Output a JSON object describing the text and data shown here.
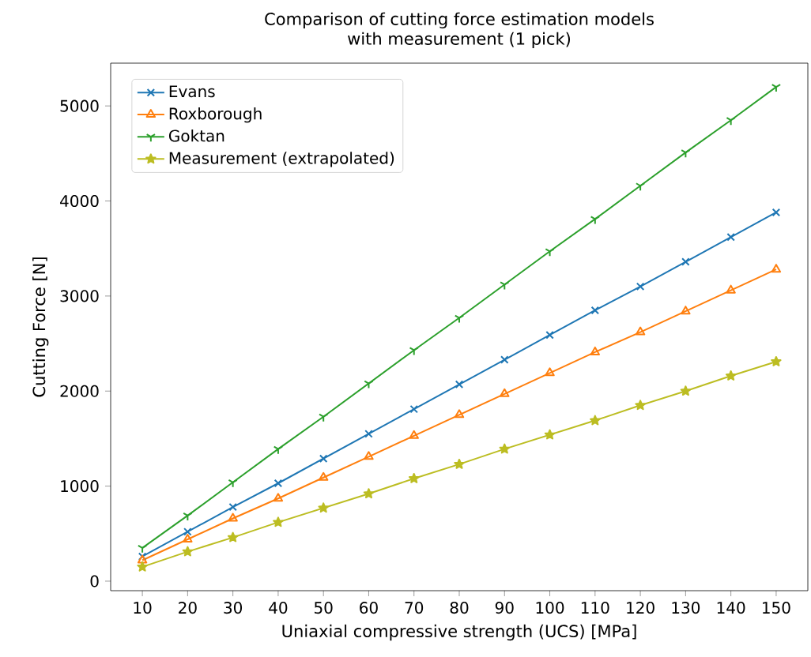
{
  "chart_data": {
    "type": "line",
    "title": "Comparison of cutting force estimation models\nwith measurement (1 pick)",
    "xlabel": "Uniaxial compressive strength (UCS) [MPa]",
    "ylabel": "Cutting Force [N]",
    "x": [
      10,
      20,
      30,
      40,
      50,
      60,
      70,
      80,
      90,
      100,
      110,
      120,
      130,
      140,
      150
    ],
    "series": [
      {
        "name": "Evans",
        "color": "#1f77b4",
        "marker": "cross",
        "values": [
          260,
          520,
          780,
          1030,
          1290,
          1550,
          1810,
          2070,
          2330,
          2590,
          2850,
          3100,
          3360,
          3620,
          3880
        ]
      },
      {
        "name": "Roxborough",
        "color": "#ff7f0e",
        "marker": "triangle",
        "values": [
          220,
          440,
          660,
          870,
          1090,
          1310,
          1530,
          1750,
          1970,
          2190,
          2410,
          2620,
          2840,
          3060,
          3280
        ]
      },
      {
        "name": "Goktan",
        "color": "#2ca02c",
        "marker": "cross",
        "values": [
          350,
          690,
          1040,
          1390,
          1730,
          2080,
          2430,
          2770,
          3120,
          3470,
          3810,
          4160,
          4510,
          4850,
          5200
        ]
      },
      {
        "name": "Measurement (extrapolated)",
        "color": "#bcbd22",
        "marker": "star",
        "values": [
          150,
          310,
          460,
          620,
          770,
          920,
          1080,
          1230,
          1390,
          1540,
          1690,
          1850,
          2000,
          2160,
          2310
        ]
      }
    ],
    "xlim": [
      3,
      157
    ],
    "ylim": [
      -100,
      5450
    ],
    "xticks": [
      10,
      20,
      30,
      40,
      50,
      60,
      70,
      80,
      90,
      100,
      110,
      120,
      130,
      140,
      150
    ],
    "yticks": [
      0,
      1000,
      2000,
      3000,
      4000,
      5000
    ],
    "grid": false,
    "legend": "top left",
    "line_style": "solid"
  }
}
